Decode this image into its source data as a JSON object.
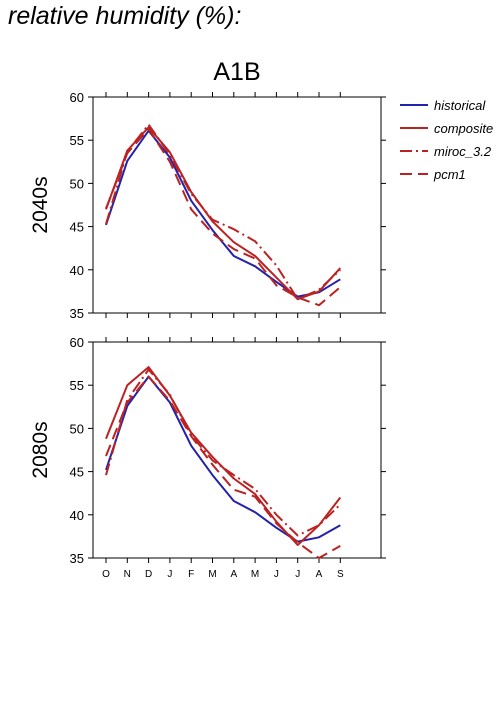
{
  "page": {
    "title": "relative humidity (%):"
  },
  "chart_data": {
    "type": "line",
    "title": "A1B",
    "categories": [
      "O",
      "N",
      "D",
      "J",
      "F",
      "M",
      "A",
      "M",
      "J",
      "J",
      "A",
      "S"
    ],
    "ylim": [
      35,
      60
    ],
    "yticks": [
      35,
      40,
      45,
      50,
      55,
      60
    ],
    "grid": false,
    "legend": {
      "placement": "top-right",
      "entries": [
        "historical",
        "composite",
        "miroc_3.2",
        "pcm1"
      ]
    },
    "colors": {
      "historical": "#2222aa",
      "composite": "#bb2222",
      "miroc_3.2": "#bb2222",
      "pcm1": "#bb2222"
    },
    "panels": [
      {
        "label": "2040s",
        "series": [
          {
            "name": "historical",
            "values": [
              45.2,
              52.6,
              56.1,
              53.0,
              48.0,
              44.6,
              41.6,
              40.4,
              38.6,
              36.9,
              37.4,
              38.9
            ]
          },
          {
            "name": "composite",
            "values": [
              47.0,
              53.8,
              56.5,
              53.6,
              49.0,
              45.6,
              43.2,
              41.6,
              39.1,
              36.6,
              37.5,
              40.2
            ]
          },
          {
            "name": "miroc_3.2",
            "values": [
              45.3,
              53.7,
              56.8,
              53.3,
              48.8,
              45.8,
              44.7,
              43.3,
              40.5,
              36.6,
              37.7,
              40.0
            ]
          },
          {
            "name": "pcm1",
            "values": [
              47.1,
              53.5,
              56.3,
              52.5,
              47.0,
              44.2,
              42.4,
              41.3,
              38.2,
              36.8,
              35.9,
              38.0
            ]
          }
        ]
      },
      {
        "label": "2080s",
        "series": [
          {
            "name": "historical",
            "values": [
              45.2,
              52.6,
              56.0,
              53.0,
              48.0,
              44.6,
              41.6,
              40.3,
              38.5,
              36.9,
              37.4,
              38.8
            ]
          },
          {
            "name": "composite",
            "values": [
              48.8,
              55.0,
              57.1,
              53.8,
              49.5,
              46.7,
              44.2,
              42.4,
              39.2,
              36.5,
              38.8,
              42.0
            ]
          },
          {
            "name": "miroc_3.2",
            "values": [
              44.6,
              53.3,
              56.8,
              53.9,
              49.2,
              46.3,
              44.6,
              43.0,
              40.0,
              37.6,
              38.8,
              41.2
            ]
          },
          {
            "name": "pcm1",
            "values": [
              46.8,
              53.0,
              56.0,
              53.2,
              49.1,
              45.8,
              42.9,
              42.1,
              39.0,
              36.8,
              35.0,
              36.4
            ]
          }
        ]
      }
    ]
  }
}
